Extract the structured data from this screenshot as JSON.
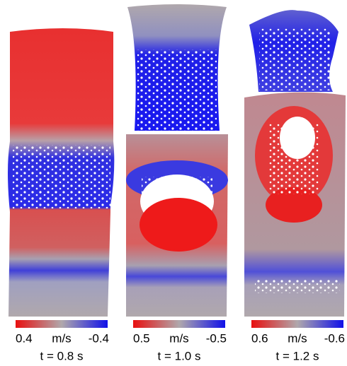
{
  "panels": [
    {
      "colorbar": {
        "left": "0.4",
        "unit": "m/s",
        "right": "-0.4"
      },
      "caption": "t = 0.8 s"
    },
    {
      "colorbar": {
        "left": "0.5",
        "unit": "m/s",
        "right": "-0.5"
      },
      "caption": "t = 1.0 s"
    },
    {
      "colorbar": {
        "left": "0.6",
        "unit": "m/s",
        "right": "-0.6"
      },
      "caption": "t = 1.2 s"
    }
  ]
}
